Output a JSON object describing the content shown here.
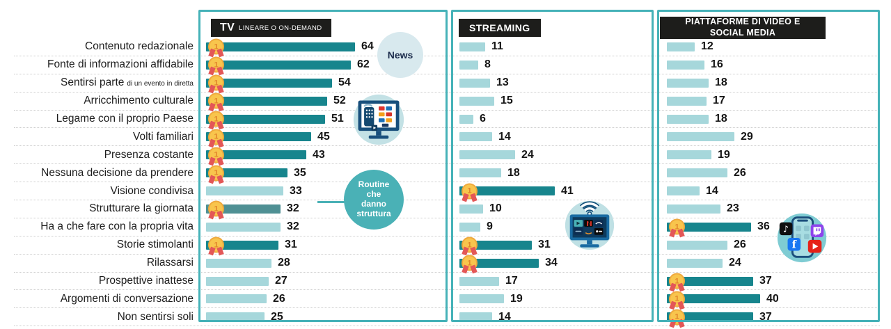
{
  "colors": {
    "bar_dark": "#17858d",
    "bar_light": "#a6d7db",
    "bar_highlight": "#4f9094",
    "panel_border": "#45b2b8",
    "routine_bg": "#4ab1b6",
    "news_bg": "#d8e9ee",
    "header_bg": "#1d1d1b",
    "medal_gold": "#f8c54d",
    "medal_ring": "#efa93d",
    "medal_ribbon": "#e35757"
  },
  "medal": {
    "label": "1"
  },
  "panels": [
    {
      "title_main": "TV",
      "title_sub": "LINEARE O ON-DEMAND"
    },
    {
      "title": "STREAMING"
    },
    {
      "title_line1": "PIATTAFORME DI VIDEO E",
      "title_line2": "SOCIAL MEDIA"
    }
  ],
  "annotations": {
    "news": "News",
    "routine_lines": [
      "Routine",
      "che",
      "danno",
      "struttura"
    ]
  },
  "icons": [
    "news-badge",
    "tv-with-remote",
    "routine-circle",
    "smart-tv-streaming",
    "smartphone-social-apps"
  ],
  "chart_data": {
    "type": "bar",
    "orientation": "horizontal",
    "title": "",
    "xlim": [
      0,
      70
    ],
    "grid": "dotted-row-separators",
    "categories": [
      "Contenuto redazionale",
      "Fonte di informazioni affidabile",
      "Sentirsi parte",
      "Arricchimento culturale",
      "Legame con il proprio Paese",
      "Volti familiari",
      "Presenza costante",
      "Nessuna decisione da prendere",
      "Visione condivisa",
      "Strutturare la giornata",
      "Ha a che fare con la propria vita",
      "Storie stimolanti",
      "Rilassarsi",
      "Prospettive inattese",
      "Argomenti di conversazione",
      "Non sentirsi soli"
    ],
    "sublabels": [
      "",
      "",
      "di un evento in diretta",
      "",
      "",
      "",
      "",
      "",
      "",
      "",
      "",
      "",
      "",
      "",
      "",
      ""
    ],
    "series": [
      {
        "name": "TV lineare o on-demand",
        "values": [
          64,
          62,
          54,
          52,
          51,
          45,
          43,
          35,
          33,
          32,
          32,
          31,
          28,
          27,
          26,
          25
        ],
        "medal": [
          true,
          true,
          true,
          true,
          true,
          true,
          true,
          true,
          false,
          true,
          false,
          true,
          false,
          false,
          false,
          false
        ]
      },
      {
        "name": "Streaming",
        "values": [
          11,
          8,
          13,
          15,
          6,
          14,
          24,
          18,
          41,
          10,
          9,
          31,
          34,
          17,
          19,
          14
        ],
        "medal": [
          false,
          false,
          false,
          false,
          false,
          false,
          false,
          false,
          true,
          false,
          false,
          true,
          true,
          false,
          false,
          false
        ]
      },
      {
        "name": "Piattaforme di video e social media",
        "values": [
          12,
          16,
          18,
          17,
          18,
          29,
          19,
          26,
          14,
          23,
          36,
          26,
          24,
          37,
          40,
          37
        ],
        "medal": [
          false,
          false,
          false,
          false,
          false,
          false,
          false,
          false,
          false,
          false,
          true,
          false,
          false,
          true,
          true,
          true
        ]
      }
    ],
    "highlight": {
      "series": 0,
      "row": 9,
      "note": "Routine che danno struttura"
    }
  }
}
